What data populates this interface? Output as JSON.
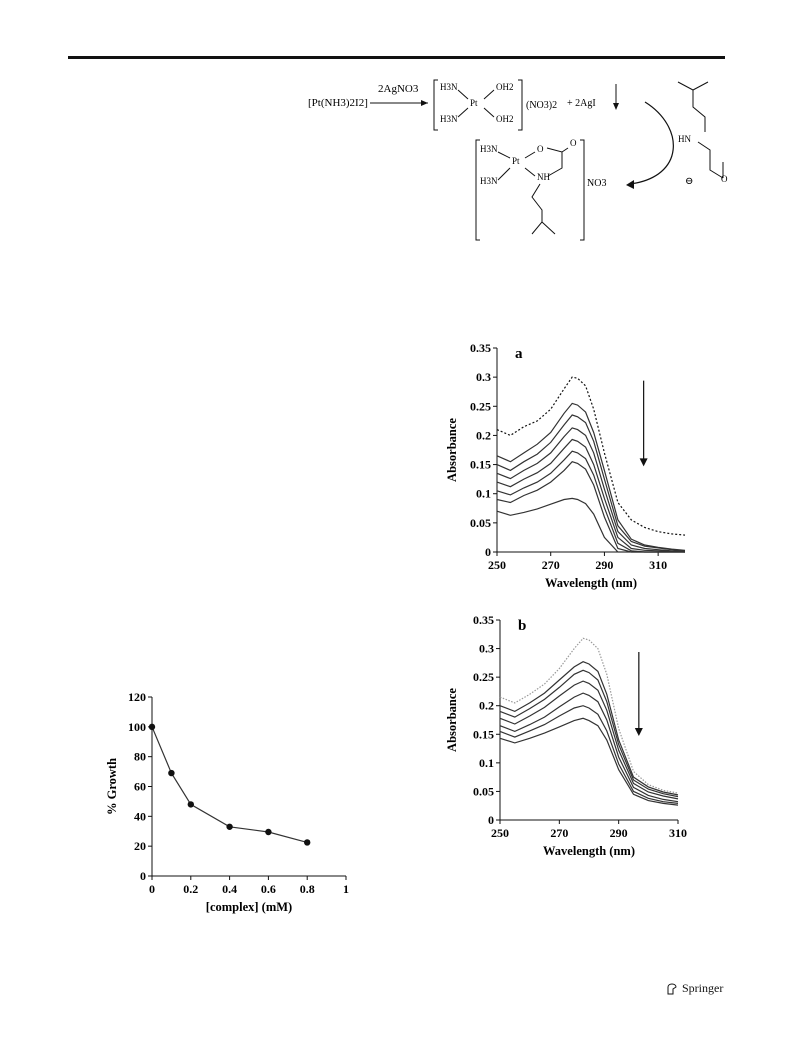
{
  "scheme": {
    "reactant": "[Pt(NH3)2I2]",
    "reagent": "2AgNO3",
    "intermediate_counterion": "(NO3)2",
    "byproduct": "+ 2AgI",
    "product_counterion": "NO3",
    "labels": {
      "h3n": "H3N",
      "oh2": "OH2",
      "pt": "Pt",
      "hn": "HN",
      "nh": "NH",
      "o": "O",
      "minus": "⊖"
    }
  },
  "chart_data": [
    {
      "id": "a",
      "type": "line",
      "panel_label": "a",
      "xlabel": "Wavelength (nm)",
      "ylabel": "Absorbance",
      "xlim": [
        250,
        320
      ],
      "ylim": [
        0,
        0.35
      ],
      "xticks": [
        250,
        270,
        290,
        310
      ],
      "yticks": [
        0,
        0.05,
        0.1,
        0.15,
        0.2,
        0.25,
        0.3,
        0.35
      ],
      "x": [
        250,
        255,
        260,
        265,
        270,
        275,
        278,
        280,
        283,
        286,
        290,
        295,
        300,
        305,
        310,
        315,
        320
      ],
      "series": [
        {
          "style": "dotted",
          "values": [
            0.21,
            0.2,
            0.215,
            0.225,
            0.245,
            0.28,
            0.3,
            0.298,
            0.285,
            0.245,
            0.17,
            0.085,
            0.055,
            0.042,
            0.035,
            0.031,
            0.029
          ]
        },
        {
          "style": "solid",
          "values": [
            0.165,
            0.155,
            0.17,
            0.185,
            0.205,
            0.238,
            0.255,
            0.252,
            0.24,
            0.205,
            0.14,
            0.055,
            0.022,
            0.012,
            0.008,
            0.005,
            0.003
          ]
        },
        {
          "style": "solid",
          "values": [
            0.15,
            0.14,
            0.155,
            0.168,
            0.188,
            0.218,
            0.235,
            0.232,
            0.222,
            0.19,
            0.125,
            0.045,
            0.018,
            0.01,
            0.007,
            0.004,
            0.002
          ]
        },
        {
          "style": "solid",
          "values": [
            0.135,
            0.126,
            0.14,
            0.152,
            0.17,
            0.198,
            0.213,
            0.21,
            0.2,
            0.17,
            0.108,
            0.035,
            0.012,
            0.006,
            0.004,
            0.002,
            0.001
          ]
        },
        {
          "style": "solid",
          "values": [
            0.12,
            0.112,
            0.125,
            0.136,
            0.152,
            0.178,
            0.193,
            0.19,
            0.18,
            0.15,
            0.092,
            0.025,
            0.006,
            0.003,
            0.002,
            0.001,
            0.0
          ]
        },
        {
          "style": "solid",
          "values": [
            0.105,
            0.098,
            0.11,
            0.12,
            0.135,
            0.158,
            0.173,
            0.17,
            0.16,
            0.132,
            0.076,
            0.015,
            0.002,
            0.0,
            0.0,
            0.0,
            0.0
          ]
        },
        {
          "style": "solid",
          "values": [
            0.09,
            0.085,
            0.097,
            0.106,
            0.12,
            0.14,
            0.155,
            0.152,
            0.142,
            0.115,
            0.06,
            0.006,
            0.0,
            0.0,
            0.0,
            0.0,
            0.0
          ]
        },
        {
          "style": "solid",
          "values": [
            0.07,
            0.063,
            0.068,
            0.074,
            0.082,
            0.09,
            0.092,
            0.09,
            0.083,
            0.065,
            0.025,
            0.0,
            0.0,
            0.0,
            0.0,
            0.0,
            0.0
          ]
        }
      ],
      "arrow": "down"
    },
    {
      "id": "b",
      "type": "line",
      "panel_label": "b",
      "xlabel": "Wavelength (nm)",
      "ylabel": "Absorbance",
      "xlim": [
        250,
        310
      ],
      "ylim": [
        0,
        0.35
      ],
      "xticks": [
        250,
        270,
        290,
        310
      ],
      "yticks": [
        0,
        0.05,
        0.1,
        0.15,
        0.2,
        0.25,
        0.3,
        0.35
      ],
      "x": [
        250,
        255,
        260,
        265,
        270,
        275,
        278,
        280,
        283,
        286,
        290,
        295,
        300,
        305,
        310
      ],
      "series": [
        {
          "style": "light",
          "values": [
            0.215,
            0.205,
            0.22,
            0.238,
            0.265,
            0.3,
            0.318,
            0.315,
            0.3,
            0.255,
            0.16,
            0.085,
            0.062,
            0.052,
            0.047
          ]
        },
        {
          "style": "solid",
          "values": [
            0.2,
            0.19,
            0.205,
            0.222,
            0.245,
            0.268,
            0.277,
            0.273,
            0.26,
            0.22,
            0.14,
            0.075,
            0.058,
            0.049,
            0.044
          ]
        },
        {
          "style": "solid",
          "values": [
            0.19,
            0.18,
            0.195,
            0.211,
            0.232,
            0.255,
            0.262,
            0.258,
            0.245,
            0.207,
            0.132,
            0.07,
            0.054,
            0.046,
            0.041
          ]
        },
        {
          "style": "solid",
          "values": [
            0.178,
            0.168,
            0.182,
            0.197,
            0.217,
            0.236,
            0.243,
            0.239,
            0.227,
            0.192,
            0.122,
            0.064,
            0.049,
            0.042,
            0.037
          ]
        },
        {
          "style": "solid",
          "values": [
            0.165,
            0.155,
            0.167,
            0.18,
            0.198,
            0.215,
            0.222,
            0.218,
            0.207,
            0.175,
            0.11,
            0.057,
            0.043,
            0.036,
            0.032
          ]
        },
        {
          "style": "solid",
          "values": [
            0.155,
            0.145,
            0.156,
            0.167,
            0.182,
            0.196,
            0.2,
            0.196,
            0.185,
            0.156,
            0.098,
            0.05,
            0.038,
            0.032,
            0.029
          ]
        },
        {
          "style": "solid",
          "values": [
            0.143,
            0.135,
            0.143,
            0.152,
            0.163,
            0.174,
            0.178,
            0.174,
            0.165,
            0.14,
            0.088,
            0.045,
            0.034,
            0.029,
            0.026
          ]
        }
      ],
      "arrow": "down"
    },
    {
      "id": "growth",
      "type": "line",
      "xlabel": "[complex]  (mM)",
      "ylabel": "% Growth",
      "xlim": [
        0,
        1
      ],
      "ylim": [
        0,
        120
      ],
      "xticks": [
        0,
        0.2,
        0.4,
        0.6,
        0.8,
        1
      ],
      "yticks": [
        0,
        20,
        40,
        60,
        80,
        100,
        120
      ],
      "x": [
        0,
        0.1,
        0.2,
        0.4,
        0.6,
        0.8
      ],
      "series": [
        {
          "style": "markers",
          "values": [
            100,
            69,
            48,
            33,
            29.5,
            22.5
          ]
        }
      ]
    }
  ],
  "footer": {
    "publisher": "Springer"
  }
}
